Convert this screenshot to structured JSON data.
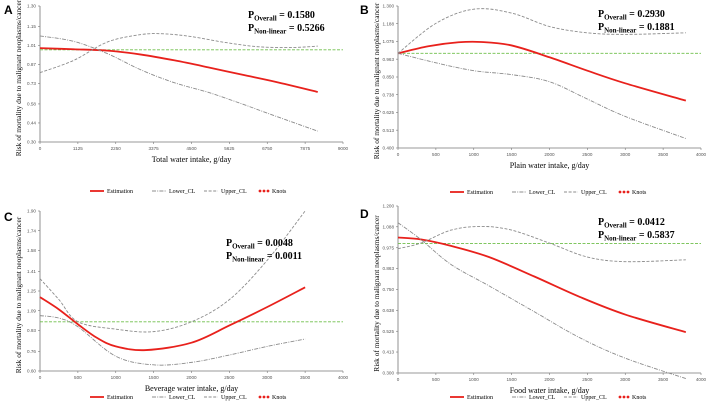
{
  "figure": {
    "legend": {
      "estimation": "Estimation",
      "lower": "Lower_CL",
      "upper": "Upper_CL",
      "knots": "Knots"
    },
    "colors": {
      "estimation": "#e8211c",
      "ci": "#8c8c8c",
      "reference": "#6fbf4a",
      "knots": "#e8211c"
    }
  },
  "chart_data": [
    {
      "panel": "A",
      "type": "line",
      "xlabel": "Total water intake, g/day",
      "ylabel": "Risk of mortality due to malignant neoplasms/cancer",
      "p_overall_label": "P",
      "p_overall_sub": "Overall",
      "p_overall_value": " = 0.1580",
      "p_nonlinear_label": "P",
      "p_nonlinear_sub": "Non-linear",
      "p_nonlinear_value": " = 0.5266",
      "xlim": [
        0,
        9000
      ],
      "ylim": [
        0.3,
        1.3
      ],
      "x_ticks": [
        0,
        1125,
        2250,
        3375,
        4500,
        5625,
        6750,
        7875,
        9000
      ],
      "y_ticks": [
        0.3,
        0.44,
        0.58,
        0.73,
        0.87,
        1.01,
        1.15,
        1.3
      ],
      "x_tick_labels": [
        "0",
        "1125",
        "2250",
        "3375",
        "4500",
        "5625",
        "6750",
        "7875",
        "9000"
      ],
      "y_tick_labels": [
        "0.30",
        "0.44",
        "0.58",
        "0.73",
        "0.87",
        "1.01",
        "1.15",
        "1.30"
      ],
      "reference": 0.978,
      "series": [
        {
          "name": "Estimation",
          "x": [
            0,
            1000,
            2000,
            3000,
            4000,
            5000,
            6000,
            7000,
            8250
          ],
          "y": [
            0.99,
            0.982,
            0.972,
            0.943,
            0.9,
            0.849,
            0.795,
            0.742,
            0.668
          ]
        },
        {
          "name": "Upper_CL",
          "x": [
            0,
            1000,
            2000,
            3000,
            3700,
            4500,
            5500,
            6500,
            7500,
            8250
          ],
          "y": [
            0.81,
            0.9,
            1.035,
            1.09,
            1.095,
            1.075,
            1.032,
            1.0,
            0.995,
            1.005
          ]
        },
        {
          "name": "Lower_CL",
          "x": [
            0,
            1000,
            2000,
            3000,
            4000,
            5000,
            6000,
            7000,
            8250
          ],
          "y": [
            1.08,
            1.04,
            0.95,
            0.83,
            0.735,
            0.665,
            0.58,
            0.49,
            0.38
          ]
        }
      ]
    },
    {
      "panel": "B",
      "type": "line",
      "xlabel": "Plain water intake, g/day",
      "ylabel": "Risk of mortality due to malignant neoplasms/cancer",
      "p_overall_label": "P",
      "p_overall_sub": "Overall",
      "p_overall_value": " = 0.2930",
      "p_nonlinear_label": "P",
      "p_nonlinear_sub": "Non-linear",
      "p_nonlinear_value": " = 0.1881",
      "xlim": [
        0,
        4000
      ],
      "ylim": [
        0.4,
        1.3
      ],
      "x_ticks": [
        0,
        500,
        1000,
        1500,
        2000,
        2500,
        3000,
        3500,
        4000
      ],
      "y_ticks": [
        0.4,
        0.513,
        0.625,
        0.738,
        0.85,
        0.963,
        1.075,
        1.188,
        1.3
      ],
      "x_tick_labels": [
        "0",
        "500",
        "1000",
        "1500",
        "2000",
        "2500",
        "3000",
        "3500",
        "4000"
      ],
      "y_tick_labels": [
        "0.400",
        "0.513",
        "0.625",
        "0.738",
        "0.850",
        "0.963",
        "1.075",
        "1.188",
        "1.300"
      ],
      "reference": 1.0,
      "series": [
        {
          "name": "Estimation",
          "x": [
            0,
            400,
            800,
            1100,
            1500,
            2000,
            2500,
            3000,
            3800
          ],
          "y": [
            1.0,
            1.045,
            1.07,
            1.072,
            1.05,
            0.975,
            0.89,
            0.81,
            0.7
          ]
        },
        {
          "name": "Upper_CL",
          "x": [
            0,
            500,
            1000,
            1500,
            2000,
            2500,
            3000,
            3800
          ],
          "y": [
            1.0,
            1.19,
            1.28,
            1.255,
            1.17,
            1.13,
            1.12,
            1.13
          ]
        },
        {
          "name": "Lower_CL",
          "x": [
            0,
            500,
            1000,
            1500,
            2000,
            2500,
            3000,
            3800
          ],
          "y": [
            1.0,
            0.94,
            0.89,
            0.865,
            0.82,
            0.71,
            0.6,
            0.46
          ]
        }
      ]
    },
    {
      "panel": "C",
      "type": "line",
      "xlabel": "Beverage water intake, g/day",
      "ylabel": "Risk of mortality due to malignant neoplasms/cancer",
      "p_overall_label": "P",
      "p_overall_sub": "Overall",
      "p_overall_value": " = 0.0048",
      "p_nonlinear_label": "P",
      "p_nonlinear_sub": "Non-linear",
      "p_nonlinear_value": " = 0.0011",
      "xlim": [
        0,
        4000
      ],
      "ylim": [
        0.6,
        1.9
      ],
      "x_ticks": [
        0,
        500,
        1000,
        1500,
        2000,
        2500,
        3000,
        3500,
        4000
      ],
      "y_ticks": [
        0.6,
        0.76,
        0.93,
        1.09,
        1.25,
        1.41,
        1.58,
        1.74,
        1.9
      ],
      "x_tick_labels": [
        "0",
        "500",
        "1000",
        "1500",
        "2000",
        "2500",
        "3000",
        "3500",
        "4000"
      ],
      "y_tick_labels": [
        "0.60",
        "0.76",
        "0.93",
        "1.09",
        "1.25",
        "1.41",
        "1.58",
        "1.74",
        "1.90"
      ],
      "reference": 1.0,
      "series": [
        {
          "name": "Estimation",
          "x": [
            0,
            250,
            500,
            750,
            1000,
            1400,
            2000,
            2500,
            3000,
            3500
          ],
          "y": [
            1.2,
            1.1,
            0.98,
            0.87,
            0.8,
            0.77,
            0.83,
            0.97,
            1.12,
            1.28
          ]
        },
        {
          "name": "Upper_CL",
          "x": [
            0,
            250,
            500,
            1000,
            1500,
            2000,
            2500,
            3000,
            3500
          ],
          "y": [
            1.35,
            1.18,
            1.0,
            0.94,
            0.92,
            1.0,
            1.18,
            1.5,
            1.9
          ]
        },
        {
          "name": "Lower_CL",
          "x": [
            0,
            250,
            500,
            1000,
            1500,
            2000,
            2500,
            3000,
            3500
          ],
          "y": [
            1.05,
            1.03,
            0.96,
            0.72,
            0.65,
            0.67,
            0.73,
            0.8,
            0.86
          ]
        }
      ]
    },
    {
      "panel": "D",
      "type": "line",
      "xlabel": "Food water intake, g/day",
      "ylabel": "Risk of mortality due to malignant neoplasms/cancer",
      "p_overall_label": "P",
      "p_overall_sub": "Overall",
      "p_overall_value": " = 0.0412",
      "p_nonlinear_label": "P",
      "p_nonlinear_sub": "Non-linear",
      "p_nonlinear_value": " = 0.5837",
      "xlim": [
        0,
        4000
      ],
      "ylim": [
        0.3,
        1.2
      ],
      "x_ticks": [
        0,
        500,
        1000,
        1500,
        2000,
        2500,
        3000,
        3500,
        4000
      ],
      "y_ticks": [
        0.3,
        0.413,
        0.525,
        0.638,
        0.75,
        0.863,
        0.975,
        1.088,
        1.2
      ],
      "x_tick_labels": [
        "0",
        "500",
        "1000",
        "1500",
        "2000",
        "2500",
        "3000",
        "3500",
        "4000"
      ],
      "y_tick_labels": [
        "0.300",
        "0.413",
        "0.525",
        "0.638",
        "0.750",
        "0.863",
        "0.975",
        "1.088",
        "1.200"
      ],
      "reference": 0.998,
      "series": [
        {
          "name": "Estimation",
          "x": [
            0,
            300,
            700,
            1200,
            1800,
            2400,
            3000,
            3800
          ],
          "y": [
            1.03,
            1.02,
            0.985,
            0.925,
            0.82,
            0.71,
            0.615,
            0.52
          ]
        },
        {
          "name": "Upper_CL",
          "x": [
            0,
            300,
            700,
            1100,
            1500,
            2000,
            2500,
            3000,
            3800
          ],
          "y": [
            0.97,
            1.0,
            1.07,
            1.09,
            1.07,
            1.0,
            0.925,
            0.9,
            0.91
          ]
        },
        {
          "name": "Lower_CL",
          "x": [
            0,
            300,
            700,
            1200,
            1800,
            2400,
            3000,
            3800
          ],
          "y": [
            1.11,
            1.02,
            0.885,
            0.77,
            0.63,
            0.49,
            0.38,
            0.27
          ]
        }
      ]
    }
  ]
}
